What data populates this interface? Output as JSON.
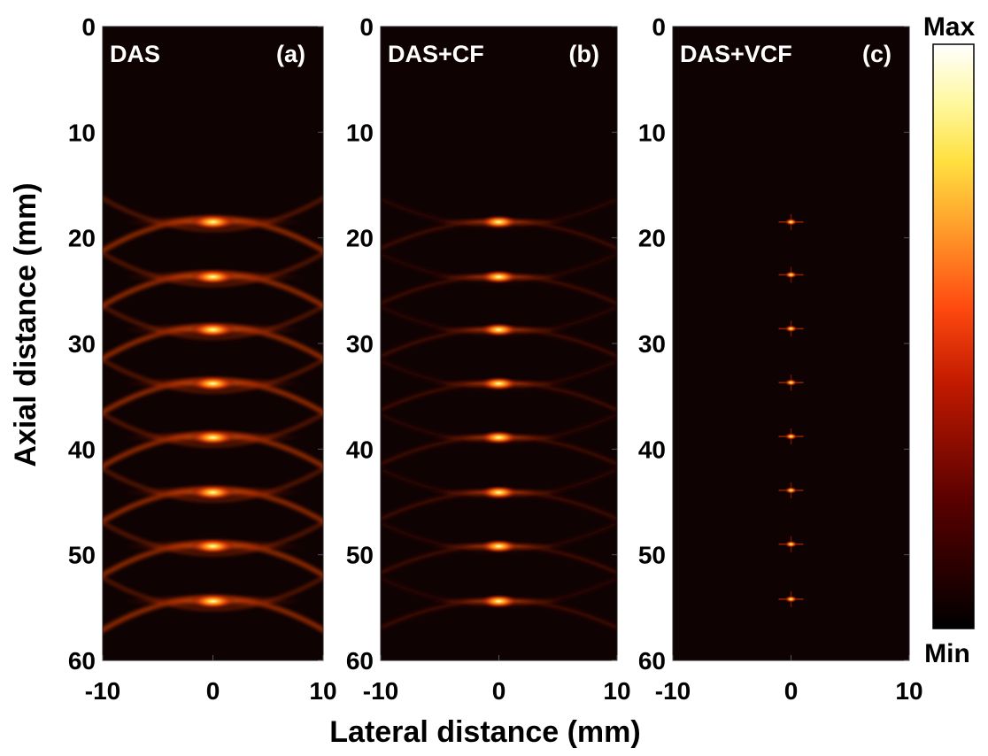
{
  "chart_data": {
    "type": "heatmap",
    "xlabel": "Lateral distance (mm)",
    "ylabel": "Axial distance (mm)",
    "xlim": [
      -10,
      10
    ],
    "ylim": [
      0,
      60
    ],
    "y_inverted": true,
    "x_tick_labels": [
      "-10",
      "0",
      "10"
    ],
    "y_tick_labels": [
      "0",
      "10",
      "20",
      "30",
      "40",
      "50",
      "60"
    ],
    "colormap": "hot",
    "colorbar": {
      "max_label": "Max",
      "min_label": "Min"
    },
    "panels": [
      {
        "title": "DAS",
        "label": "(a)",
        "method": "das",
        "points": [
          {
            "x": 0,
            "y": 18.5
          },
          {
            "x": 0,
            "y": 23.7
          },
          {
            "x": 0,
            "y": 28.7
          },
          {
            "x": 0,
            "y": 33.8
          },
          {
            "x": 0,
            "y": 38.9
          },
          {
            "x": 0,
            "y": 44.1
          },
          {
            "x": 0,
            "y": 49.2
          },
          {
            "x": 0,
            "y": 54.4
          }
        ]
      },
      {
        "title": "DAS+CF",
        "label": "(b)",
        "method": "cf",
        "points": [
          {
            "x": 0,
            "y": 18.5
          },
          {
            "x": 0,
            "y": 23.7
          },
          {
            "x": 0,
            "y": 28.7
          },
          {
            "x": 0,
            "y": 33.8
          },
          {
            "x": 0,
            "y": 38.9
          },
          {
            "x": 0,
            "y": 44.1
          },
          {
            "x": 0,
            "y": 49.2
          },
          {
            "x": 0,
            "y": 54.4
          }
        ]
      },
      {
        "title": "DAS+VCF",
        "label": "(c)",
        "method": "vcf",
        "points": [
          {
            "x": 0,
            "y": 18.5
          },
          {
            "x": 0,
            "y": 23.5
          },
          {
            "x": 0,
            "y": 28.6
          },
          {
            "x": 0,
            "y": 33.7
          },
          {
            "x": 0,
            "y": 38.8
          },
          {
            "x": 0,
            "y": 43.9
          },
          {
            "x": 0,
            "y": 49.0
          },
          {
            "x": 0,
            "y": 54.2
          }
        ]
      }
    ]
  },
  "colors": {
    "background": "#ffffff",
    "image_background": "#0f0202",
    "glow_hot": "#fff6c8",
    "glow_mid": "#ff6a10",
    "glow_dark": "#7a1a00"
  }
}
